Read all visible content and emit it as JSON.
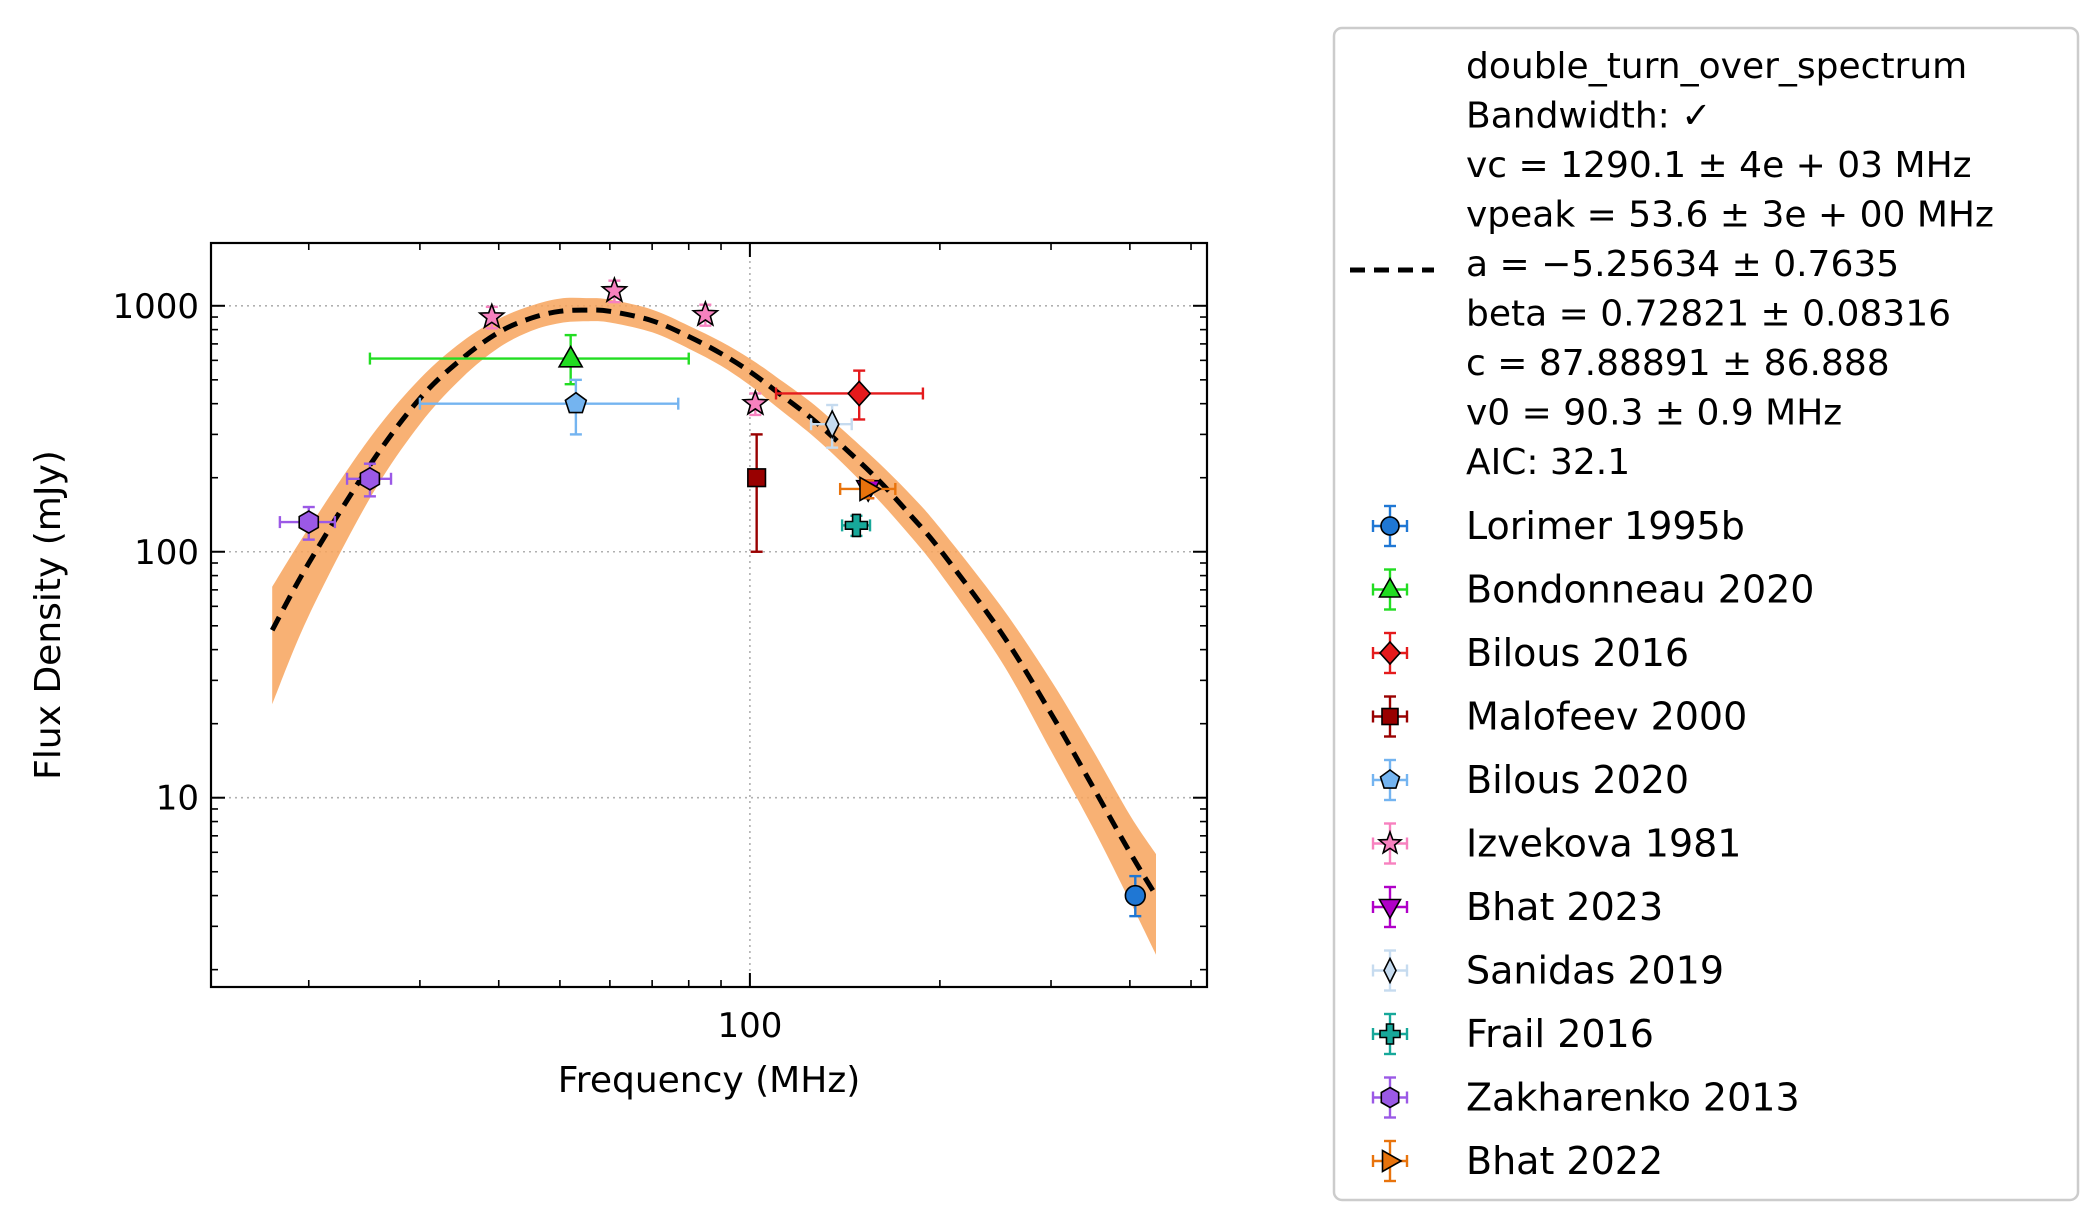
{
  "chart_data": {
    "type": "scatter",
    "xlabel": "Frequency (MHz)",
    "ylabel": "Flux Density (mJy)",
    "xscale": "log",
    "yscale": "log",
    "xlim": [
      14,
      530
    ],
    "ylim": [
      1.7,
      1800
    ],
    "grid": true,
    "legend_placement": "outside-right",
    "xticks": [
      {
        "value": 100,
        "label": "100"
      }
    ],
    "yticks": [
      {
        "value": 10,
        "label": "10"
      },
      {
        "value": 100,
        "label": "100"
      },
      {
        "value": 1000,
        "label": "1000"
      }
    ],
    "fit": {
      "name": "double_turn_over_spectrum",
      "line_color": "#000000",
      "band_color": "#f7a35c",
      "x": [
        17.5,
        20,
        25,
        30,
        35,
        40,
        45,
        50,
        55,
        60,
        70,
        80,
        90,
        100,
        110,
        125,
        140,
        160,
        180,
        200,
        250,
        300,
        350,
        400,
        440
      ],
      "y": [
        48,
        90,
        225,
        420,
        610,
        780,
        890,
        950,
        960,
        950,
        870,
        750,
        640,
        540,
        450,
        350,
        270,
        195,
        140,
        102,
        47,
        22,
        11,
        6.0,
        4.0
      ],
      "band_lower": [
        24,
        55,
        165,
        330,
        510,
        675,
        790,
        850,
        865,
        855,
        780,
        670,
        570,
        475,
        390,
        300,
        230,
        162,
        115,
        82,
        36,
        15.5,
        7.5,
        3.8,
        2.3
      ],
      "band_upper": [
        72,
        125,
        290,
        505,
        715,
        885,
        1000,
        1070,
        1075,
        1060,
        965,
        830,
        715,
        610,
        515,
        405,
        315,
        230,
        170,
        125,
        60,
        30,
        15.5,
        8.5,
        5.9
      ],
      "legend_lines": [
        "double_turn_over_spectrum",
        "Bandwidth: ✓",
        "vc = 1290.1 ± 4e + 03 MHz",
        "vpeak = 53.6 ± 3e + 00 MHz",
        "a = −5.25634 ± 0.7635",
        "beta = 0.72821 ± 0.08316",
        "c = 87.88891 ± 86.888",
        "v0 = 90.3 ± 0.9 MHz",
        "AIC: 32.1"
      ]
    },
    "series": [
      {
        "name": "Lorimer 1995b",
        "marker": "circle",
        "color": "#1f77d4",
        "points": [
          {
            "x": 408,
            "y": 4.0,
            "ylo": 3.3,
            "yhi": 4.8
          }
        ]
      },
      {
        "name": "Bondonneau 2020",
        "marker": "triangle-up",
        "color": "#22dd22",
        "points": [
          {
            "x": 52,
            "y": 610,
            "xlo": 25,
            "xhi": 80,
            "ylo": 480,
            "yhi": 760
          }
        ]
      },
      {
        "name": "Bilous 2016",
        "marker": "diamond",
        "color": "#e41a1c",
        "points": [
          {
            "x": 149,
            "y": 440,
            "xlo": 110,
            "xhi": 188,
            "ylo": 345,
            "yhi": 545
          }
        ]
      },
      {
        "name": "Malofeev 2000",
        "marker": "square",
        "color": "#990000",
        "points": [
          {
            "x": 102.5,
            "y": 200,
            "ylo": 100,
            "yhi": 300
          }
        ]
      },
      {
        "name": "Bilous 2020",
        "marker": "pentagon",
        "color": "#74b4f0",
        "points": [
          {
            "x": 53,
            "y": 400,
            "xlo": 30,
            "xhi": 77,
            "ylo": 300,
            "yhi": 500
          }
        ]
      },
      {
        "name": "Izvekova 1981",
        "marker": "star",
        "color": "#f781bf",
        "points": [
          {
            "x": 39,
            "y": 900,
            "ylo": 810,
            "yhi": 990
          },
          {
            "x": 61,
            "y": 1150,
            "ylo": 1035,
            "yhi": 1265
          },
          {
            "x": 85,
            "y": 920,
            "ylo": 830,
            "yhi": 1010
          },
          {
            "x": 102,
            "y": 400,
            "ylo": 360,
            "yhi": 440
          }
        ]
      },
      {
        "name": "Bhat 2023",
        "marker": "triangle-down",
        "color": "#b000c8",
        "points": [
          {
            "x": 154,
            "y": 180,
            "ylo": 165,
            "yhi": 195
          }
        ]
      },
      {
        "name": "Sanidas 2019",
        "marker": "thin-diamond",
        "color": "#c6dbef",
        "points": [
          {
            "x": 135,
            "y": 330,
            "xlo": 125,
            "xhi": 145,
            "ylo": 265,
            "yhi": 395
          }
        ]
      },
      {
        "name": "Frail 2016",
        "marker": "plus",
        "color": "#17a89a",
        "points": [
          {
            "x": 147.5,
            "y": 128,
            "xlo": 140,
            "xhi": 155,
            "ylo": 116,
            "yhi": 140
          }
        ]
      },
      {
        "name": "Zakharenko 2013",
        "marker": "hexagon",
        "color": "#9b59e6",
        "points": [
          {
            "x": 20,
            "y": 132,
            "xlo": 18,
            "xhi": 22,
            "ylo": 112,
            "yhi": 152
          },
          {
            "x": 25,
            "y": 198,
            "xlo": 23,
            "xhi": 27,
            "ylo": 168,
            "yhi": 228
          }
        ]
      },
      {
        "name": "Bhat 2022",
        "marker": "triangle-right",
        "color": "#e8730c",
        "points": [
          {
            "x": 154,
            "y": 180,
            "xlo": 139,
            "xhi": 170,
            "ylo": 165,
            "yhi": 195
          }
        ]
      }
    ]
  }
}
